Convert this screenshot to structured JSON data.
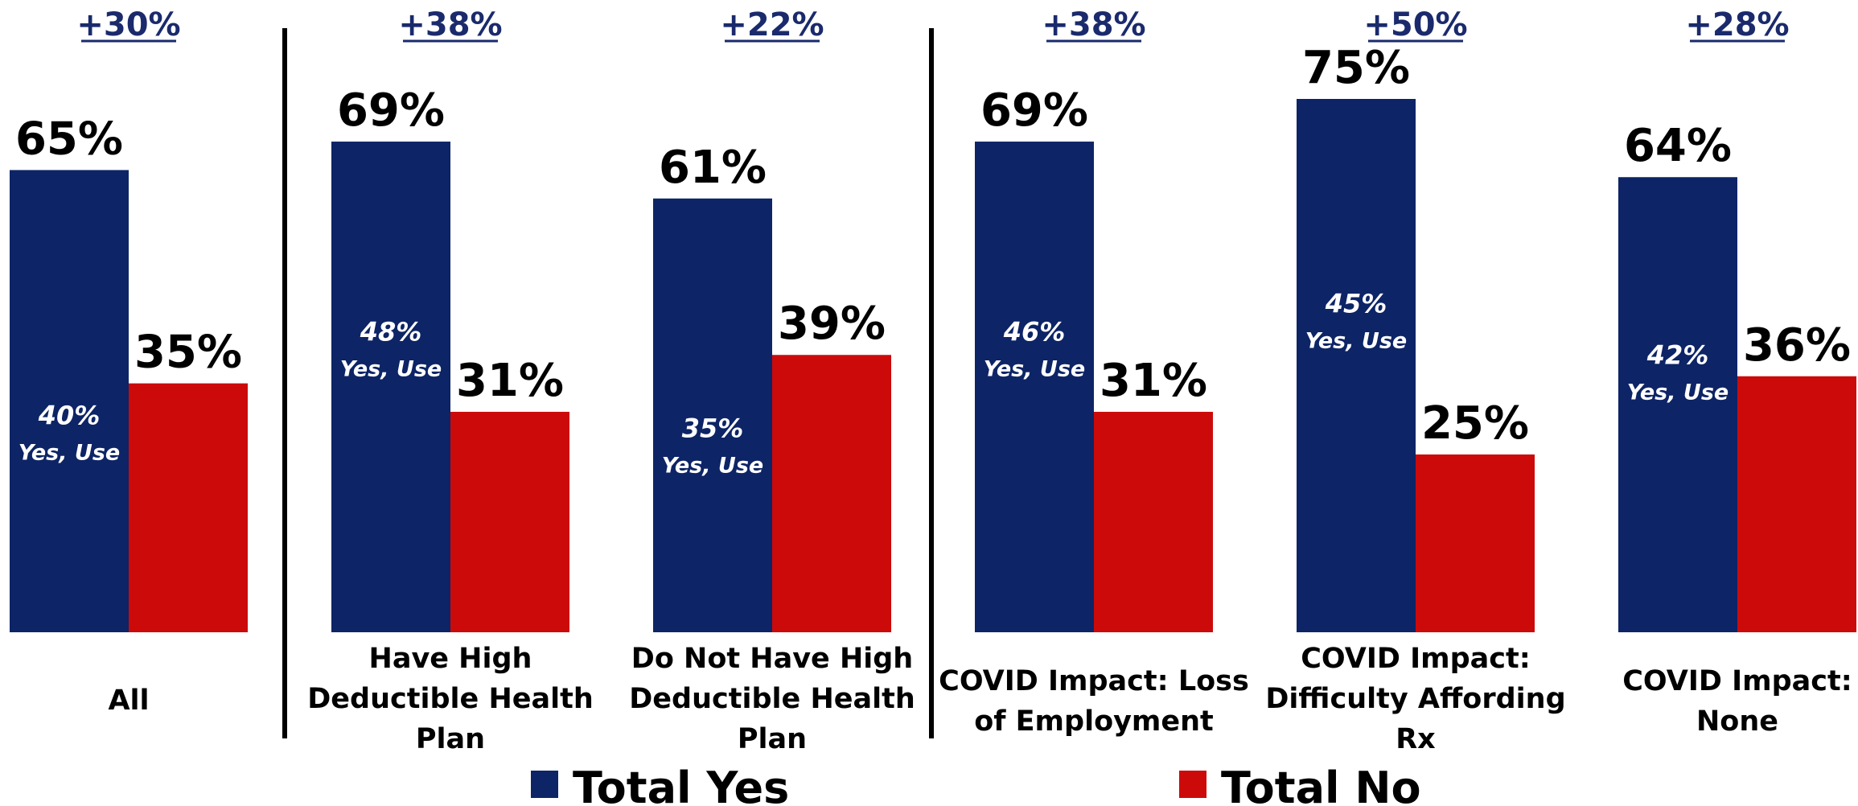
{
  "chart_data": {
    "type": "bar",
    "categories": [
      "All",
      "Have High Deductible Health Plan",
      "Do Not Have High Deductible Health Plan",
      "COVID Impact: Loss of Employment",
      "COVID Impact: Difficulty Affording Rx",
      "COVID Impact: None"
    ],
    "category_lines": [
      [
        "All"
      ],
      [
        "Have High",
        "Deductible Health",
        "Plan"
      ],
      [
        "Do Not Have High",
        "Deductible Health",
        "Plan"
      ],
      [
        "COVID Impact: Loss",
        "of Employment"
      ],
      [
        "COVID Impact:",
        "Difficulty Affording",
        "Rx"
      ],
      [
        "COVID Impact:",
        "None"
      ]
    ],
    "series": [
      {
        "name": "Total Yes",
        "color": "#0d2466",
        "values": [
          65,
          69,
          61,
          69,
          75,
          64
        ],
        "labels": [
          "65%",
          "69%",
          "61%",
          "69%",
          "75%",
          "64%"
        ]
      },
      {
        "name": "Total No",
        "color": "#cc0a0a",
        "values": [
          35,
          31,
          39,
          31,
          25,
          36
        ],
        "labels": [
          "35%",
          "31%",
          "39%",
          "31%",
          "25%",
          "36%"
        ]
      }
    ],
    "yes_use": {
      "values": [
        40,
        48,
        35,
        46,
        45,
        42
      ],
      "labels": [
        "40%",
        "48%",
        "35%",
        "46%",
        "45%",
        "42%"
      ],
      "sublabel": "Yes, Use"
    },
    "differences": [
      "+30%",
      "+38%",
      "+22%",
      "+38%",
      "+50%",
      "+28%"
    ],
    "ylim": [
      0,
      80
    ],
    "legend_position": "bottom",
    "grid": false,
    "group_separators_after": [
      "All",
      "Do Not Have High Deductible Health Plan"
    ]
  }
}
